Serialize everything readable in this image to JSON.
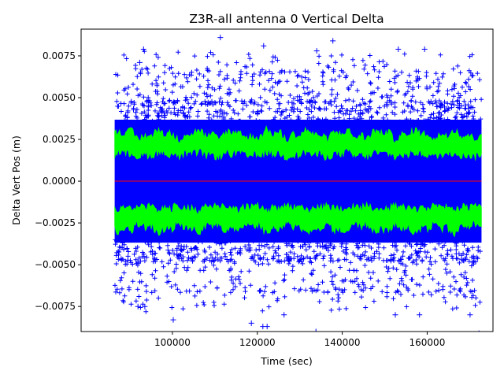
{
  "chart_data": {
    "type": "scatter",
    "title": "Z3R-all antenna 0 Vertical Delta",
    "xlabel": "Time (sec)",
    "ylabel": "Delta Vert Pos (m)",
    "xlim": [
      78500,
      175500
    ],
    "ylim": [
      -0.009,
      0.0091
    ],
    "x_ticks": [
      100000,
      120000,
      140000,
      160000
    ],
    "x_tick_labels": [
      "100000",
      "120000",
      "140000",
      "160000"
    ],
    "y_ticks": [
      -0.0075,
      -0.005,
      -0.0025,
      0.0,
      0.0025,
      0.005,
      0.0075
    ],
    "y_tick_labels": [
      "−0.0075",
      "−0.0050",
      "−0.0025",
      "0.0000",
      "0.0025",
      "0.0050",
      "0.0075"
    ],
    "grid": false,
    "legend": "none",
    "x_range": [
      86400,
      172800
    ],
    "series": [
      {
        "marker": "plus",
        "color": "#0000ff",
        "typical_abs_max": 0.0046,
        "outlier_points": [
          [
            111300,
            0.0086
          ],
          [
            134000,
            0.0078
          ],
          [
            121500,
            0.0081
          ],
          [
            137800,
            0.0084
          ],
          [
            153200,
            0.0079
          ],
          [
            159400,
            0.0079
          ],
          [
            93200,
            0.0079
          ],
          [
            92300,
            0.0071
          ],
          [
            118600,
            -0.0085
          ],
          [
            121300,
            -0.0087
          ],
          [
            122300,
            -0.0087
          ],
          [
            100200,
            -0.0083
          ],
          [
            133800,
            -0.009
          ],
          [
            172200,
            -0.0091
          ],
          [
            91900,
            -0.0075
          ],
          [
            93500,
            -0.0075
          ],
          [
            152500,
            -0.008
          ],
          [
            158200,
            -0.008
          ],
          [
            170100,
            -0.008
          ],
          [
            126300,
            -0.008
          ]
        ]
      },
      {
        "color": "#00ff00",
        "center_abs": 0.0022,
        "half_width": 0.0006
      },
      {
        "color": "#ff0000",
        "value": 0.0
      }
    ]
  }
}
